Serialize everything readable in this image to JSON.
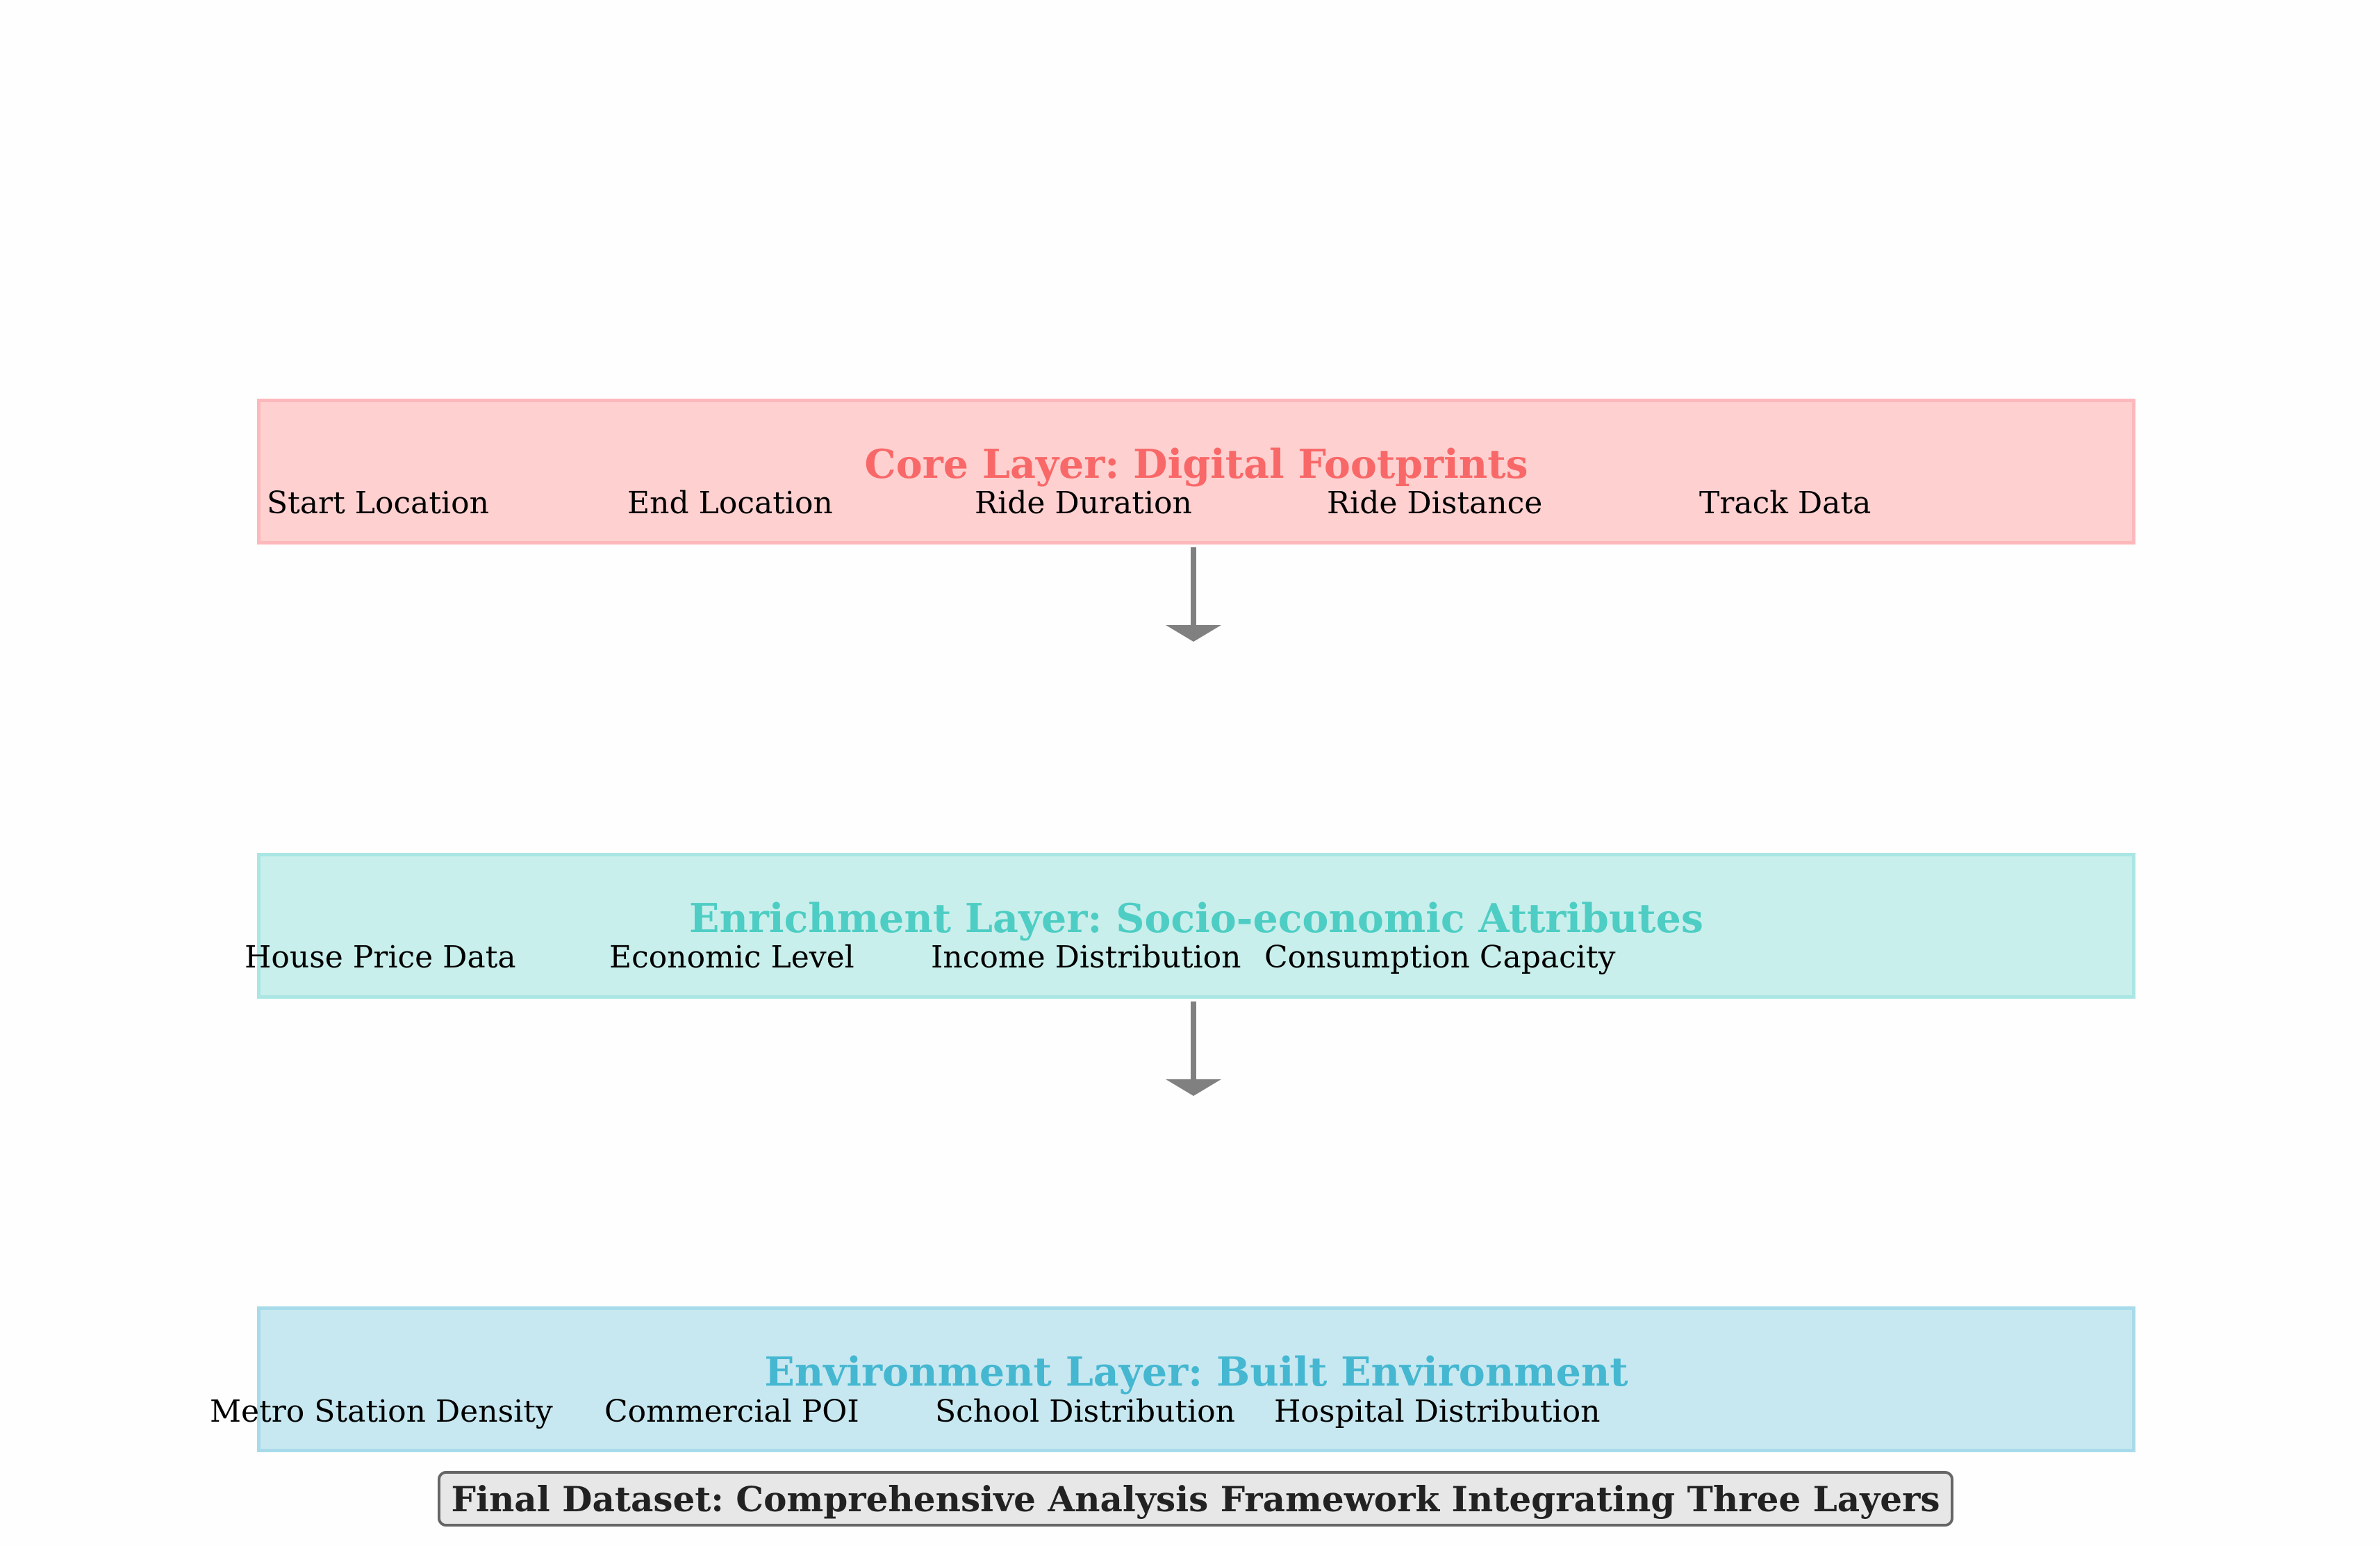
{
  "layers": [
    {
      "title": "Core Layer: Digital Footprints",
      "title_color": "#f96868",
      "fill": "#fed0d0",
      "border": "#fdb8bc",
      "items": [
        "Start Location",
        "End Location",
        "Ride Duration",
        "Ride Distance",
        "Track Data"
      ]
    },
    {
      "title": "Enrichment Layer: Socio-economic Attributes",
      "title_color": "#4ecdc4",
      "fill": "#c8efeb",
      "border": "#a9e6e4",
      "items": [
        "House Price Data",
        "Economic Level",
        "Income Distribution",
        "Consumption Capacity"
      ]
    },
    {
      "title": "Environment Layer: Built Environment",
      "title_color": "#45b7d1",
      "fill": "#c7e8f0",
      "border": "#a8dbea",
      "items": [
        "Metro Station Density",
        "Commercial POI",
        "School Distribution",
        "Hospital Distribution"
      ]
    }
  ],
  "final_label": "Final Dataset: Comprehensive Analysis Framework Integrating Three Layers",
  "arrow_color": "#808080"
}
